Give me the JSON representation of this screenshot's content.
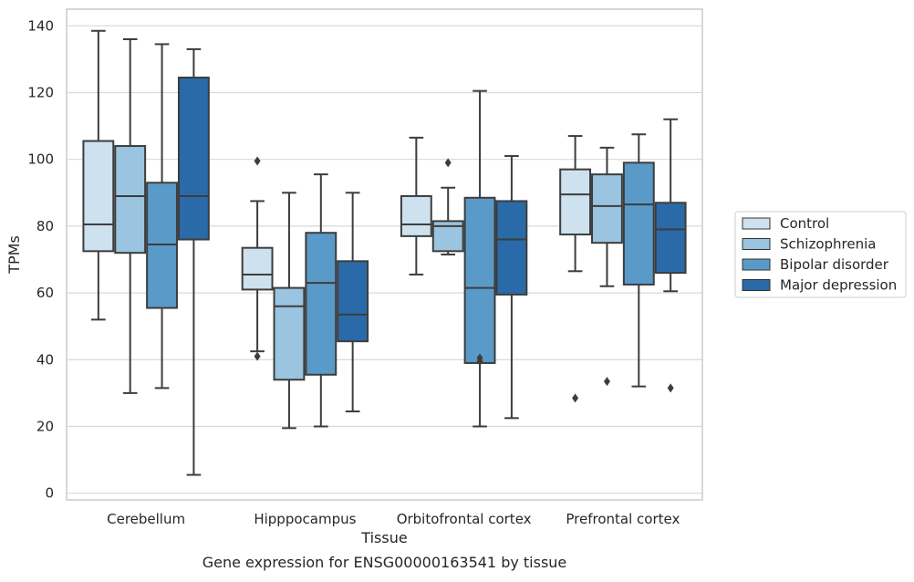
{
  "chart_data": {
    "type": "boxplot",
    "title": "",
    "caption": "Gene expression for ENSG00000163541 by tissue",
    "xlabel": "Tissue",
    "ylabel": "TPMs",
    "ylim": [
      -2,
      145
    ],
    "yticks": [
      0,
      20,
      40,
      60,
      80,
      100,
      120,
      140
    ],
    "grid": "horizontal",
    "legend_position": "right",
    "categories": [
      "Cerebellum",
      "Hipppocampus",
      "Orbitofrontal cortex",
      "Prefrontal cortex"
    ],
    "series": [
      {
        "name": "Control",
        "color": "#cde1ef",
        "boxes": [
          {
            "whisker_low": 52,
            "q1": 72.5,
            "median": 80.5,
            "q3": 105.5,
            "whisker_high": 138.5,
            "outliers": []
          },
          {
            "whisker_low": 42.5,
            "q1": 61,
            "median": 65.5,
            "q3": 73.5,
            "whisker_high": 87.5,
            "outliers": [
              99.5,
              41
            ]
          },
          {
            "whisker_low": 65.5,
            "q1": 77,
            "median": 80.5,
            "q3": 89,
            "whisker_high": 106.5,
            "outliers": []
          },
          {
            "whisker_low": 66.5,
            "q1": 77.5,
            "median": 89.5,
            "q3": 97,
            "whisker_high": 107,
            "outliers": [
              28.5
            ]
          }
        ]
      },
      {
        "name": "Schizophrenia",
        "color": "#9ac4df",
        "boxes": [
          {
            "whisker_low": 30,
            "q1": 72,
            "median": 89,
            "q3": 104,
            "whisker_high": 136,
            "outliers": []
          },
          {
            "whisker_low": 19.5,
            "q1": 34,
            "median": 56,
            "q3": 61.5,
            "whisker_high": 90,
            "outliers": []
          },
          {
            "whisker_low": 71.5,
            "q1": 72.5,
            "median": 80,
            "q3": 81.5,
            "whisker_high": 91.5,
            "outliers": [
              99
            ]
          },
          {
            "whisker_low": 62,
            "q1": 75,
            "median": 86,
            "q3": 95.5,
            "whisker_high": 103.5,
            "outliers": [
              33.5
            ]
          }
        ]
      },
      {
        "name": "Bipolar disorder",
        "color": "#5a9ac8",
        "boxes": [
          {
            "whisker_low": 31.5,
            "q1": 55.5,
            "median": 74.5,
            "q3": 93,
            "whisker_high": 134.5,
            "outliers": []
          },
          {
            "whisker_low": 20,
            "q1": 35.5,
            "median": 63,
            "q3": 78,
            "whisker_high": 95.5,
            "outliers": []
          },
          {
            "whisker_low": 20,
            "q1": 39,
            "median": 61.5,
            "q3": 88.5,
            "whisker_high": 120.5,
            "outliers": [
              40.5,
              39.5
            ]
          },
          {
            "whisker_low": 32,
            "q1": 62.5,
            "median": 86.5,
            "q3": 99,
            "whisker_high": 107.5,
            "outliers": []
          }
        ]
      },
      {
        "name": "Major depression",
        "color": "#2a6aa8",
        "boxes": [
          {
            "whisker_low": 5.5,
            "q1": 76,
            "median": 89,
            "q3": 124.5,
            "whisker_high": 133,
            "outliers": []
          },
          {
            "whisker_low": 24.5,
            "q1": 45.5,
            "median": 53.5,
            "q3": 69.5,
            "whisker_high": 90,
            "outliers": []
          },
          {
            "whisker_low": 22.5,
            "q1": 59.5,
            "median": 76,
            "q3": 87.5,
            "whisker_high": 101,
            "outliers": []
          },
          {
            "whisker_low": 60.5,
            "q1": 66,
            "median": 79,
            "q3": 87,
            "whisker_high": 112,
            "outliers": [
              31.5
            ]
          }
        ]
      }
    ]
  }
}
